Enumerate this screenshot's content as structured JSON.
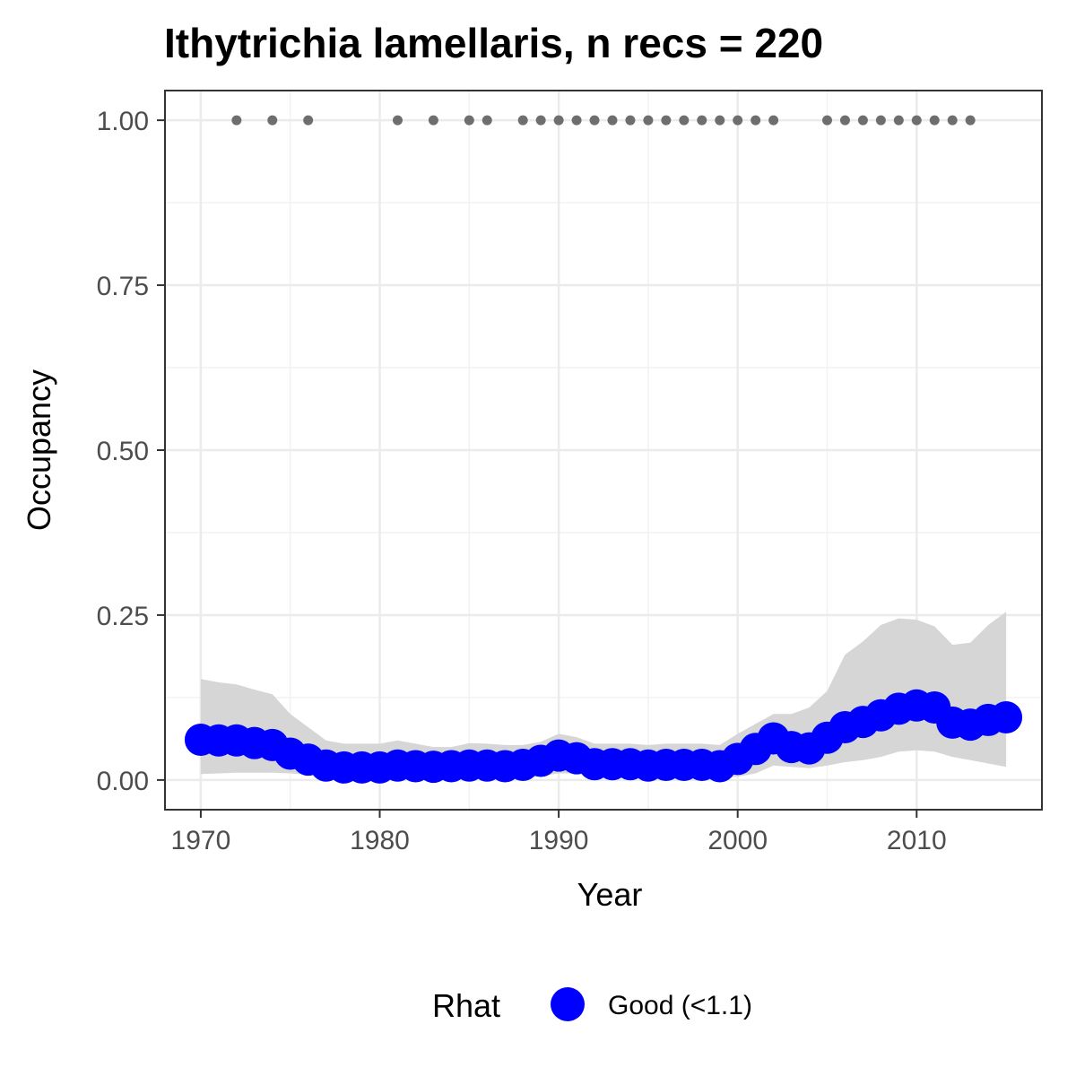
{
  "chart_data": {
    "type": "line",
    "title": "Ithytrichia lamellaris, n recs = 220",
    "xlabel": "Year",
    "ylabel": "Occupancy",
    "xlim": [
      1968,
      2017
    ],
    "ylim": [
      -0.045,
      1.045
    ],
    "x_ticks": [
      1970,
      1980,
      1990,
      2000,
      2010
    ],
    "x_tick_labels": [
      "1970",
      "1980",
      "1990",
      "2000",
      "2010"
    ],
    "y_ticks": [
      0,
      0.25,
      0.5,
      0.75,
      1.0
    ],
    "y_tick_labels": [
      "0.00",
      "0.25",
      "0.50",
      "0.75",
      "1.00"
    ],
    "grid": true,
    "legend": {
      "title": "Rhat",
      "position": "bottom",
      "entries": [
        {
          "label": "Good (<1.1)",
          "color": "#0000ff"
        }
      ]
    },
    "series": [
      {
        "name": "Good (<1.1)",
        "color": "#0000ff",
        "x": [
          1970,
          1971,
          1972,
          1973,
          1974,
          1975,
          1976,
          1977,
          1978,
          1979,
          1980,
          1981,
          1982,
          1983,
          1984,
          1985,
          1986,
          1987,
          1988,
          1989,
          1990,
          1991,
          1992,
          1993,
          1994,
          1995,
          1996,
          1997,
          1998,
          1999,
          2000,
          2001,
          2002,
          2003,
          2004,
          2005,
          2006,
          2007,
          2008,
          2009,
          2010,
          2011,
          2012,
          2013,
          2014,
          2015
        ],
        "y": [
          0.061,
          0.06,
          0.06,
          0.056,
          0.053,
          0.04,
          0.031,
          0.022,
          0.019,
          0.019,
          0.019,
          0.022,
          0.021,
          0.02,
          0.021,
          0.022,
          0.022,
          0.021,
          0.023,
          0.029,
          0.037,
          0.033,
          0.024,
          0.024,
          0.024,
          0.022,
          0.023,
          0.023,
          0.023,
          0.021,
          0.032,
          0.047,
          0.063,
          0.05,
          0.048,
          0.064,
          0.08,
          0.088,
          0.098,
          0.108,
          0.113,
          0.11,
          0.087,
          0.084,
          0.091,
          0.095
        ]
      }
    ],
    "ribbon": {
      "color": "#d6d6d6",
      "x": [
        1970,
        1971,
        1972,
        1973,
        1974,
        1975,
        1976,
        1977,
        1978,
        1979,
        1980,
        1981,
        1982,
        1983,
        1984,
        1985,
        1986,
        1987,
        1988,
        1989,
        1990,
        1991,
        1992,
        1993,
        1994,
        1995,
        1996,
        1997,
        1998,
        1999,
        2000,
        2001,
        2002,
        2003,
        2004,
        2005,
        2006,
        2007,
        2008,
        2009,
        2010,
        2011,
        2012,
        2013,
        2014,
        2015
      ],
      "lower": [
        0.009,
        0.01,
        0.011,
        0.011,
        0.011,
        0.01,
        0.008,
        0.004,
        0.002,
        0.002,
        0.002,
        0.003,
        0.003,
        0.003,
        0.003,
        0.003,
        0.003,
        0.003,
        0.004,
        0.006,
        0.01,
        0.01,
        0.004,
        0.004,
        0.004,
        0.003,
        0.003,
        0.003,
        0.003,
        0.003,
        0.005,
        0.01,
        0.022,
        0.02,
        0.018,
        0.022,
        0.027,
        0.03,
        0.035,
        0.043,
        0.045,
        0.043,
        0.035,
        0.03,
        0.025,
        0.02
      ],
      "upper": [
        0.153,
        0.148,
        0.145,
        0.137,
        0.13,
        0.1,
        0.08,
        0.06,
        0.055,
        0.055,
        0.055,
        0.06,
        0.055,
        0.05,
        0.05,
        0.056,
        0.055,
        0.053,
        0.053,
        0.058,
        0.07,
        0.065,
        0.055,
        0.055,
        0.055,
        0.053,
        0.055,
        0.055,
        0.055,
        0.053,
        0.07,
        0.085,
        0.1,
        0.1,
        0.11,
        0.135,
        0.19,
        0.21,
        0.235,
        0.245,
        0.243,
        0.233,
        0.205,
        0.208,
        0.235,
        0.255
      ]
    },
    "records": {
      "color": "#6e6e6e",
      "y": 1.0,
      "x": [
        1972,
        1974,
        1976,
        1981,
        1983,
        1985,
        1986,
        1988,
        1989,
        1990,
        1991,
        1992,
        1993,
        1994,
        1995,
        1996,
        1997,
        1998,
        1999,
        2000,
        2001,
        2002,
        2005,
        2006,
        2007,
        2008,
        2009,
        2010,
        2011,
        2012,
        2013
      ]
    }
  }
}
